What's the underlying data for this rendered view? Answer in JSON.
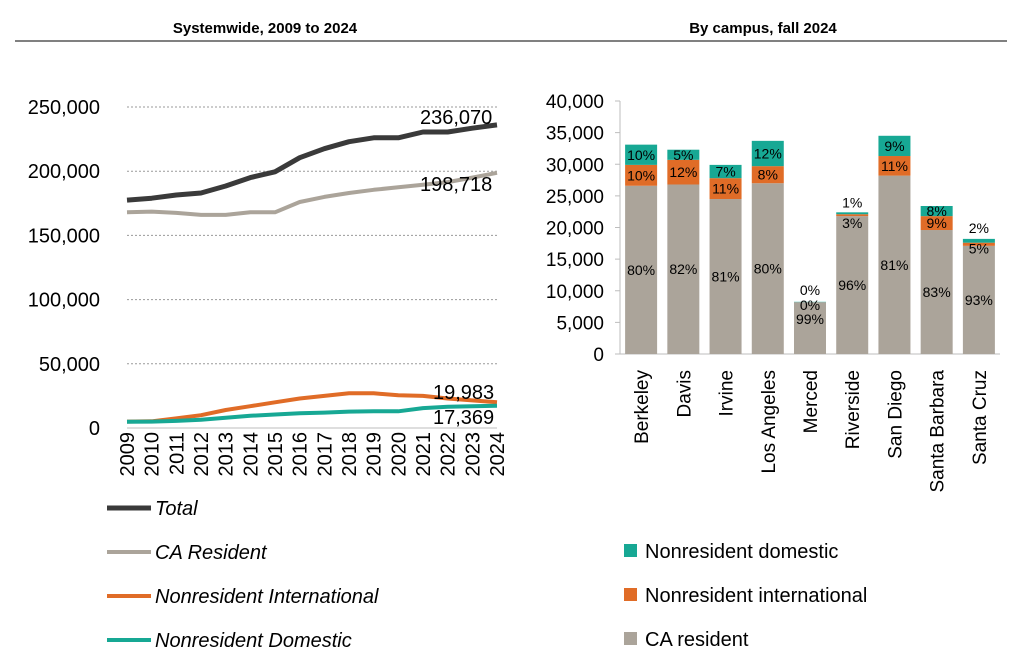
{
  "chart_data": [
    {
      "type": "line",
      "title": "Systemwide, 2009 to 2024",
      "x": [
        "2009",
        "2010",
        "2011",
        "2012",
        "2013",
        "2014",
        "2015",
        "2016",
        "2017",
        "2018",
        "2019",
        "2020",
        "2021",
        "2022",
        "2023",
        "2024"
      ],
      "ylim": [
        0,
        250000
      ],
      "yticks": [
        "0",
        "50,000",
        "100,000",
        "150,000",
        "200,000",
        "250,000"
      ],
      "ytick_values": [
        0,
        50000,
        100000,
        150000,
        200000,
        250000
      ],
      "grid": true,
      "legend_position": "bottom",
      "series": [
        {
          "name": "Total",
          "color": "#3a3a3a",
          "values": [
            177500,
            179000,
            181500,
            183000,
            188500,
            195000,
            199500,
            210500,
            217500,
            223000,
            226000,
            226000,
            230500,
            230500,
            233500,
            236070
          ],
          "end_label": "236,070"
        },
        {
          "name": "CA Resident",
          "color": "#aba49a",
          "values": [
            168000,
            168500,
            167500,
            166000,
            166000,
            168000,
            168000,
            176000,
            180000,
            183000,
            185500,
            187500,
            189500,
            191500,
            195000,
            198718
          ],
          "end_label": "198,718"
        },
        {
          "name": "Nonresident International",
          "color": "#e06c27",
          "values": [
            5000,
            5200,
            7500,
            10000,
            14000,
            17000,
            20000,
            23000,
            25000,
            27000,
            27000,
            25500,
            25000,
            23000,
            21500,
            19983
          ],
          "end_label": "19,983"
        },
        {
          "name": "Nonresident Domestic",
          "color": "#17a894",
          "values": [
            4800,
            5000,
            5500,
            6500,
            8000,
            9500,
            10500,
            11500,
            12000,
            12800,
            13000,
            13000,
            15500,
            16500,
            17000,
            17369
          ],
          "end_label": "17,369"
        }
      ]
    },
    {
      "type": "bar",
      "stacked": true,
      "title": "By campus, fall 2024",
      "categories": [
        "Berkeley",
        "Davis",
        "Irvine",
        "Los Angeles",
        "Merced",
        "Riverside",
        "San Diego",
        "Santa Barbara",
        "Santa Cruz"
      ],
      "ylim": [
        0,
        40000
      ],
      "yticks": [
        "0",
        "5,000",
        "10,000",
        "15,000",
        "20,000",
        "25,000",
        "30,000",
        "35,000",
        "40,000"
      ],
      "ytick_values": [
        0,
        5000,
        10000,
        15000,
        20000,
        25000,
        30000,
        35000,
        40000
      ],
      "legend_position": "bottom",
      "series": [
        {
          "name": "CA resident",
          "color": "#aba49a",
          "values": [
            26600,
            26800,
            24500,
            27000,
            8200,
            21800,
            28200,
            19600,
            17100
          ],
          "labels": [
            "80%",
            "82%",
            "81%",
            "80%",
            "99%",
            "96%",
            "81%",
            "83%",
            "93%"
          ]
        },
        {
          "name": "Nonresident international",
          "color": "#e06c27",
          "values": [
            3300,
            3900,
            3300,
            2700,
            0,
            300,
            3100,
            2200,
            500
          ],
          "labels": [
            "10%",
            "12%",
            "11%",
            "8%",
            "0%",
            "3%",
            "11%",
            "9%",
            "5%"
          ]
        },
        {
          "name": "Nonresident domestic",
          "color": "#17a894",
          "values": [
            3200,
            1600,
            2100,
            4000,
            50,
            300,
            3200,
            1600,
            600
          ],
          "labels": [
            "10%",
            "5%",
            "7%",
            "12%",
            "0%",
            "1%",
            "9%",
            "8%",
            "2%"
          ]
        }
      ]
    }
  ]
}
